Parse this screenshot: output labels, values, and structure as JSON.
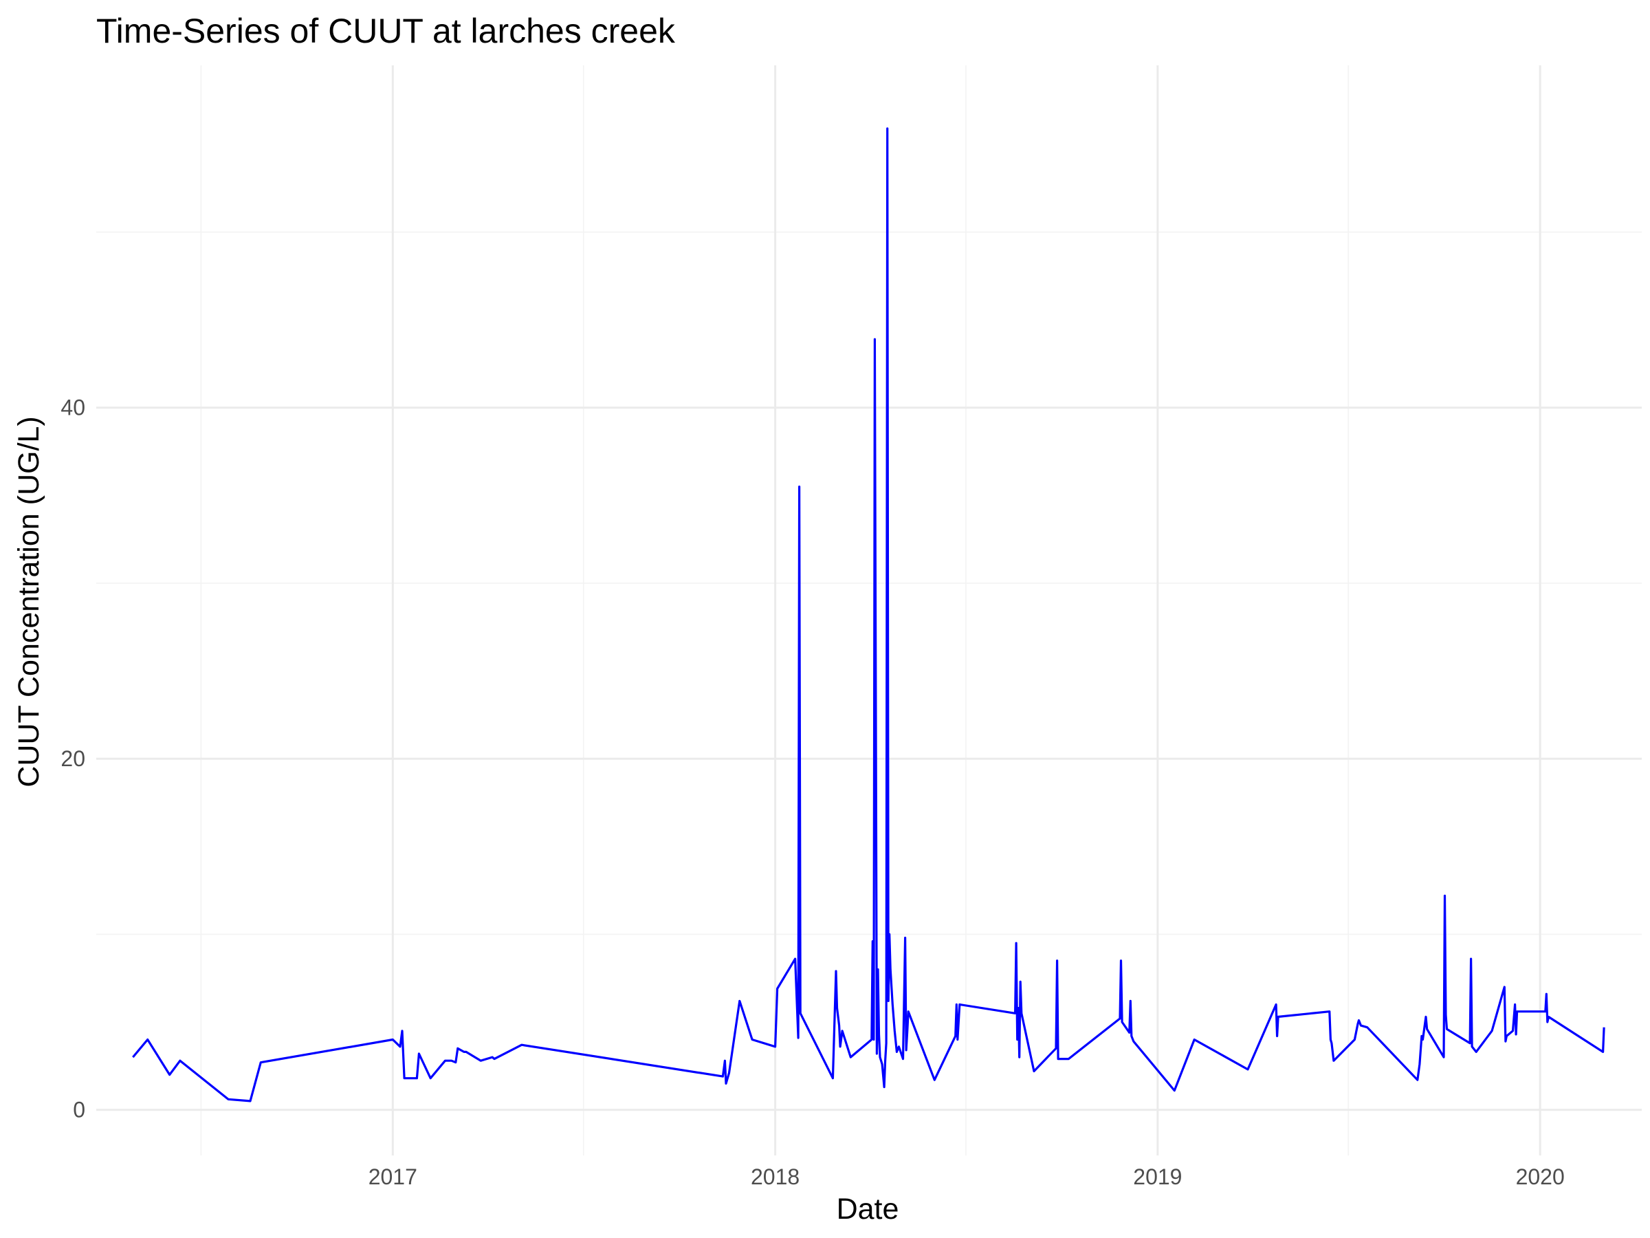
{
  "chart_data": {
    "type": "line",
    "title": "Time-Series of CUUT at larches creek",
    "xlabel": "Date",
    "ylabel": "CUUT Concentration (UG/L)",
    "x_ticks": [
      "2017",
      "2018",
      "2019",
      "2020"
    ],
    "y_ticks": [
      0,
      20,
      40
    ],
    "xlim": [
      "2016-03-24",
      "2020-04-07"
    ],
    "ylim": [
      -2.6,
      59.5
    ],
    "grid": true,
    "legend": "none",
    "series_color": "#0000ff",
    "series": [
      {
        "x": [
          "2016-04-28",
          "2016-05-12",
          "2016-06-02",
          "2016-06-12",
          "2016-07-28",
          "2016-08-18",
          "2016-08-28",
          "2017-01-01",
          "2017-01-08",
          "2017-01-10",
          "2017-01-12",
          "2017-01-14",
          "2017-01-24",
          "2017-01-26",
          "2017-02-06",
          "2017-02-20",
          "2017-02-26",
          "2017-03-02",
          "2017-03-04",
          "2017-03-10",
          "2017-03-12",
          "2017-03-26",
          "2017-04-06",
          "2017-04-08",
          "2017-05-04",
          "2017-11-12",
          "2017-11-14",
          "2017-11-15",
          "2017-11-18",
          "2017-11-28",
          "2017-12-10",
          "2018-01-01",
          "2018-01-03",
          "2018-01-20",
          "2018-01-23",
          "2018-01-24",
          "2018-01-25",
          "2018-02-25",
          "2018-02-28",
          "2018-03-01",
          "2018-03-03",
          "2018-03-04",
          "2018-03-06",
          "2018-03-14",
          "2018-04-03",
          "2018-04-04",
          "2018-04-05",
          "2018-04-06",
          "2018-04-08",
          "2018-04-09",
          "2018-04-10",
          "2018-04-11",
          "2018-04-13",
          "2018-04-15",
          "2018-04-16",
          "2018-04-17",
          "2018-04-18",
          "2018-04-19",
          "2018-04-20",
          "2018-04-21",
          "2018-04-23",
          "2018-04-25",
          "2018-04-27",
          "2018-04-29",
          "2018-05-03",
          "2018-05-05",
          "2018-05-06",
          "2018-05-07",
          "2018-05-08",
          "2018-06-02",
          "2018-06-22",
          "2018-06-23",
          "2018-06-24",
          "2018-06-26",
          "2018-08-18",
          "2018-08-19",
          "2018-08-20",
          "2018-08-21",
          "2018-08-22",
          "2018-08-23",
          "2018-08-24",
          "2018-09-05",
          "2018-09-26",
          "2018-09-27",
          "2018-09-28",
          "2018-10-08",
          "2018-11-26",
          "2018-11-27",
          "2018-11-28",
          "2018-12-05",
          "2018-12-06",
          "2018-12-07",
          "2018-12-09",
          "2019-01-17",
          "2019-02-05",
          "2019-03-28",
          "2019-04-24",
          "2019-04-25",
          "2019-04-26",
          "2019-06-14",
          "2019-06-15",
          "2019-06-16",
          "2019-06-18",
          "2019-07-08",
          "2019-07-11",
          "2019-07-12",
          "2019-07-14",
          "2019-07-20",
          "2019-09-06",
          "2019-09-08",
          "2019-09-10",
          "2019-09-11",
          "2019-09-14",
          "2019-09-15",
          "2019-10-01",
          "2019-10-02",
          "2019-10-03",
          "2019-10-04",
          "2019-10-26",
          "2019-10-27",
          "2019-10-28",
          "2019-11-01",
          "2019-11-16",
          "2019-11-28",
          "2019-11-29",
          "2019-11-30",
          "2019-12-06",
          "2019-12-08",
          "2019-12-09",
          "2019-12-10",
          "2019-12-12",
          "2020-01-06",
          "2020-01-07",
          "2020-01-08",
          "2020-01-09",
          "2020-03-01",
          "2020-03-02"
        ],
        "y": [
          3,
          4,
          2,
          2.8,
          0.6,
          0.5,
          2.7,
          4,
          3.6,
          4.5,
          1.8,
          1.8,
          1.8,
          3.2,
          1.8,
          2.8,
          2.8,
          2.7,
          3.5,
          3.3,
          3.3,
          2.8,
          3,
          2.9,
          3.7,
          1.9,
          2.8,
          1.5,
          2.1,
          6.2,
          4,
          3.6,
          6.9,
          8.6,
          4.1,
          35.5,
          5.5,
          1.8,
          7.9,
          5.8,
          4.8,
          3.6,
          4.5,
          3,
          4,
          9.6,
          4,
          43.9,
          3.2,
          8,
          4.3,
          3,
          2.6,
          1.3,
          2.8,
          3.8,
          55.9,
          6.2,
          10,
          8,
          6,
          4.5,
          3.3,
          3.6,
          2.9,
          9.8,
          3.4,
          4.4,
          5.6,
          1.7,
          4.2,
          6,
          4,
          6,
          5.5,
          9.5,
          4,
          5.8,
          3,
          7.3,
          5.5,
          2.2,
          3.5,
          8.5,
          2.9,
          2.9,
          5.2,
          8.5,
          5,
          4.4,
          6.2,
          4.2,
          3.9,
          1.1,
          4,
          2.3,
          6,
          4.2,
          5.3,
          5.6,
          4,
          3.8,
          2.8,
          4,
          4.9,
          5.1,
          4.8,
          4.7,
          1.7,
          2.6,
          4.2,
          4,
          5.3,
          4.6,
          3,
          12.2,
          5.4,
          4.6,
          3.8,
          8.6,
          3.6,
          3.3,
          4.5,
          7,
          3.9,
          4.2,
          4.5,
          6,
          4.3,
          5.6,
          5.6,
          5.6,
          6.6,
          5,
          5.3,
          3.3,
          4.7
        ]
      }
    ]
  }
}
